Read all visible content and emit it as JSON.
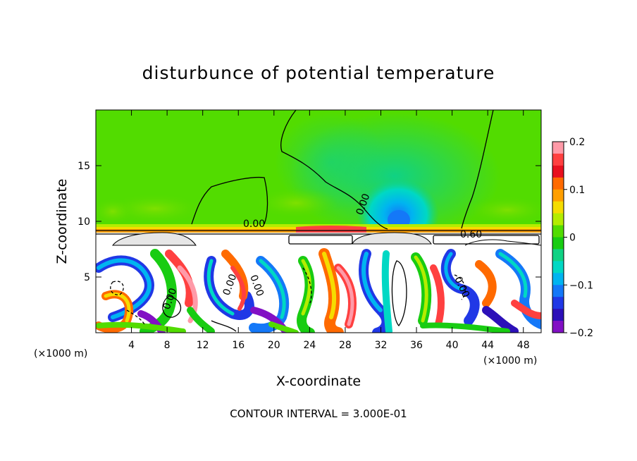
{
  "chart_data": {
    "type": "heatmap",
    "title": "disturbunce of potential temperature",
    "xlabel": "X-coordinate",
    "ylabel": "Z-coordinate",
    "x_unit_label": "(×1000 m)",
    "y_unit_label": "(×1000 m)",
    "xlim": [
      0,
      50
    ],
    "ylim": [
      0,
      20
    ],
    "x_ticks": [
      4,
      8,
      12,
      16,
      20,
      24,
      28,
      32,
      36,
      40,
      44,
      48
    ],
    "y_ticks": [
      5,
      10,
      15
    ],
    "colorbar": {
      "range": [
        -0.2,
        0.2
      ],
      "tick_values": [
        0.2,
        0.1,
        0,
        -0.1,
        -0.2
      ],
      "tick_labels": [
        "0.2",
        "0.1",
        "0",
        "−0.1",
        "−0.2"
      ],
      "colors": [
        "#ff9aa8",
        "#ff4040",
        "#e8101e",
        "#ff6a00",
        "#ff9f00",
        "#f5dc00",
        "#b4ec00",
        "#52dc00",
        "#18cc12",
        "#10d284",
        "#00d8c4",
        "#00b4f0",
        "#1478f8",
        "#2038e6",
        "#2c10b8",
        "#8210c4"
      ]
    },
    "contour_labels": [
      "0.00",
      "0.00",
      "0.60",
      "0.00",
      "0.00",
      "0.00",
      "0.00"
    ],
    "contour_interval_text": "CONTOUR INTERVAL = 3.000E-01",
    "field_summary": {
      "upper_layer_z": [
        9.5,
        20
      ],
      "upper_layer_value_approx": 0.02,
      "interface_z_approx": 9.2,
      "interface_value_approx": 0.15,
      "cold_anomaly_center": {
        "x": 34,
        "z": 11,
        "value_approx": -0.08
      },
      "lower_layer_z": [
        0,
        8.5
      ],
      "lower_layer": "turbulent, values from below -0.2 to above 0.2"
    }
  }
}
